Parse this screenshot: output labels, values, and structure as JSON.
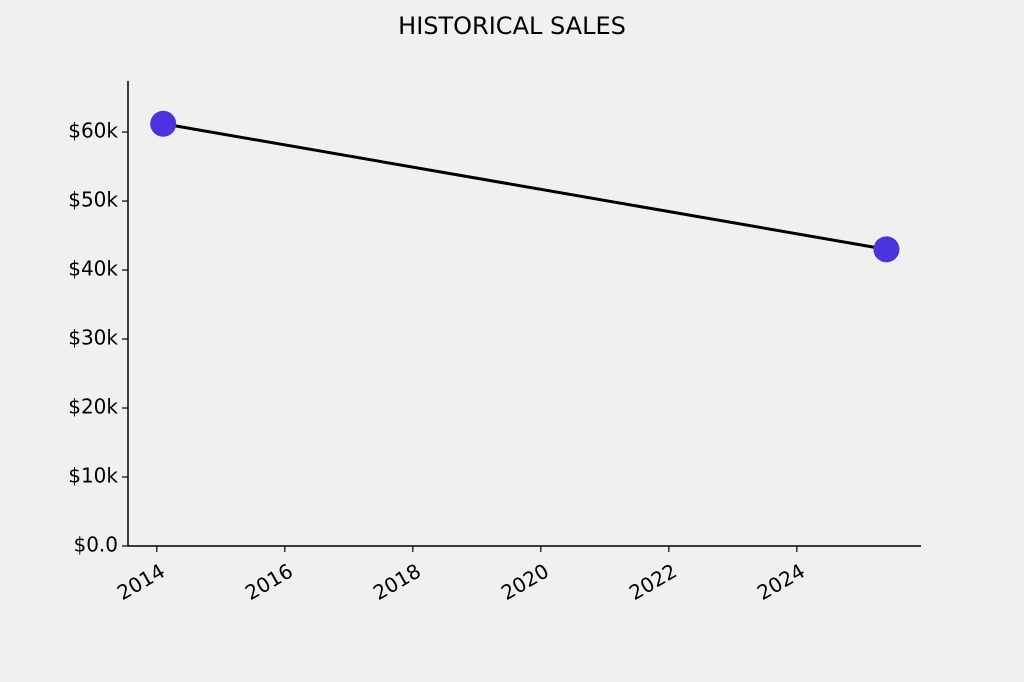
{
  "chart_data": {
    "type": "line",
    "title": "HISTORICAL SALES",
    "x": [
      2014.1,
      2025.4
    ],
    "series": [
      {
        "values": [
          61200,
          43000
        ],
        "color": "#000000",
        "marker_color": "#4b33e0"
      }
    ],
    "xlim": [
      2013.55,
      2025.94
    ],
    "xticks": [
      2014,
      2016,
      2018,
      2020,
      2022,
      2024
    ],
    "ylim": [
      0,
      67400
    ],
    "yticks": [
      {
        "value": 0,
        "label": "$0.0"
      },
      {
        "value": 10000,
        "label": "$10k"
      },
      {
        "value": 20000,
        "label": "$20k"
      },
      {
        "value": 30000,
        "label": "$30k"
      },
      {
        "value": 40000,
        "label": "$40k"
      },
      {
        "value": 50000,
        "label": "$50k"
      },
      {
        "value": 60000,
        "label": "$60k"
      }
    ],
    "grid": false
  }
}
